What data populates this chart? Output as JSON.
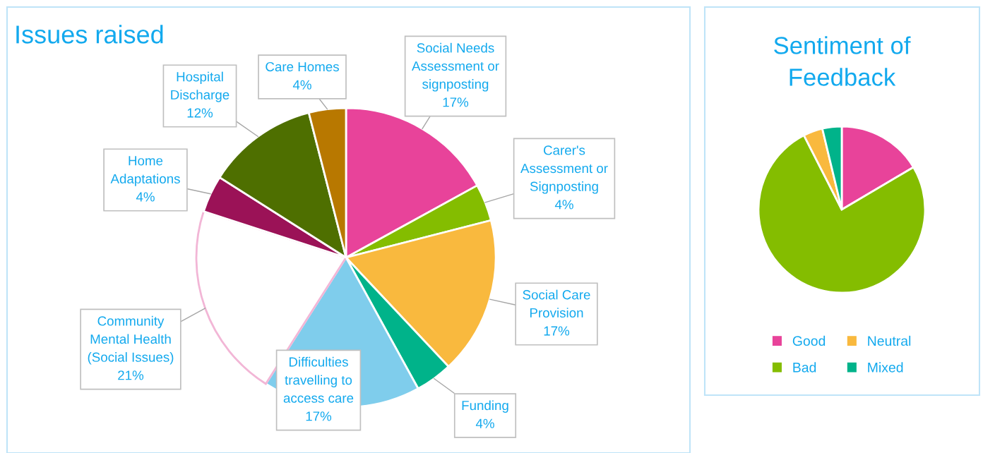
{
  "chart_data": [
    {
      "type": "pie",
      "title": "Issues raised",
      "categories": [
        "Social Needs\nAssessment or\nsignposting",
        "Carer's\nAssessment or\nSignposting",
        "Social Care\nProvision",
        "Funding",
        "Difficulties\ntravelling to\naccess care",
        "Community\nMental Health\n(Social Issues)",
        "Home\nAdaptations",
        "Hospital\nDischarge",
        "Care Homes"
      ],
      "values": [
        17,
        4,
        17,
        4,
        17,
        21,
        4,
        12,
        4
      ],
      "value_labels": [
        "17%",
        "4%",
        "17%",
        "4%",
        "17%",
        "21%",
        "4%",
        "12%",
        "4%"
      ],
      "colors": [
        "#e8439a",
        "#84bd00",
        "#f9b93e",
        "#00b38a",
        "#7fcdec",
        "#ffffff",
        "#9b1257",
        "#4e6f00",
        "#b87800"
      ],
      "legend": false
    },
    {
      "type": "pie",
      "title": "Sentiment of\nFeedback",
      "categories": [
        "Good",
        "Bad",
        "Neutral",
        "Mixed"
      ],
      "values": [
        16.5,
        76,
        3.75,
        3.75
      ],
      "colors": [
        "#e8439a",
        "#84bd00",
        "#f9b93e",
        "#00b38a"
      ],
      "legend": "bottom"
    }
  ]
}
